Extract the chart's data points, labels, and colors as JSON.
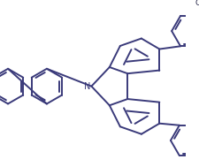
{
  "bg_color": "#ffffff",
  "line_color": "#3a3a7a",
  "line_width": 1.4,
  "fig_width": 2.26,
  "fig_height": 1.89,
  "dpi": 100
}
